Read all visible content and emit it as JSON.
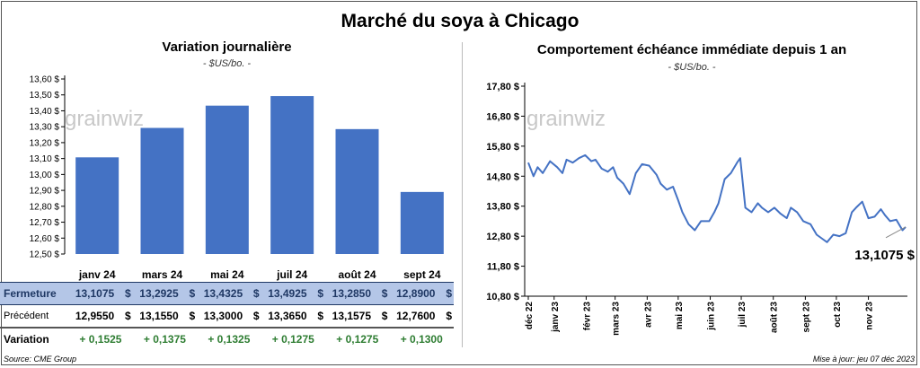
{
  "title": "Marché du soya à Chicago",
  "left_title": "Variation  journalière",
  "left_unit": "- $US/bo. -",
  "right_title": "Comportement  échéance  immédiate  depuis  1  an",
  "right_unit": "- $US/bo. -",
  "watermark": "grainwiz",
  "currency": "$",
  "table": {
    "rows": [
      {
        "label": "Fermeture",
        "values": [
          "13,1075",
          "13,2925",
          "13,4325",
          "13,4925",
          "13,2850",
          "12,8900"
        ]
      },
      {
        "label": "Précédent",
        "values": [
          "12,9550",
          "13,1550",
          "13,3000",
          "13,3650",
          "13,1575",
          "12,7600"
        ]
      }
    ],
    "variation_label": "Variation",
    "variations": [
      "+ 0,1525",
      "+ 0,1375",
      "+ 0,1325",
      "+ 0,1275",
      "+ 0,1275",
      "+ 0,1300"
    ]
  },
  "footer": {
    "source": "Source: CME Group",
    "update": "Mise à jour: jeu 07 déc 2023"
  },
  "chart_data": [
    {
      "type": "bar",
      "categories": [
        "janv 24",
        "mars 24",
        "mai 24",
        "juil 24",
        "août 24",
        "sept 24"
      ],
      "values": [
        13.1075,
        13.2925,
        13.4325,
        13.4925,
        13.285,
        12.89
      ],
      "ylim": [
        12.5,
        13.6
      ],
      "yticks": [
        "12,50 $",
        "12,60 $",
        "12,70 $",
        "12,80 $",
        "12,90 $",
        "13,00 $",
        "13,10 $",
        "13,20 $",
        "13,30 $",
        "13,40 $",
        "13,50 $",
        "13,60 $"
      ],
      "color": "#4472c4"
    },
    {
      "type": "line",
      "ylim": [
        10.8,
        17.8
      ],
      "yticks": [
        "10,80 $",
        "11,80 $",
        "12,80 $",
        "13,80 $",
        "14,80 $",
        "15,80 $",
        "16,80 $",
        "17,80 $"
      ],
      "xticks": [
        "déc 22",
        "janv 23",
        "févr 23",
        "mars 23",
        "avr 23",
        "mai 23",
        "juin 23",
        "juil 23",
        "août 23",
        "sept 23",
        "oct 23",
        "nov 23"
      ],
      "last_label": "13,1075 $",
      "color": "#4472c4",
      "x": [
        "2022-12-07",
        "2022-12-12",
        "2022-12-16",
        "2022-12-21",
        "2022-12-28",
        "2023-01-04",
        "2023-01-09",
        "2023-01-13",
        "2023-01-19",
        "2023-01-25",
        "2023-01-31",
        "2023-02-06",
        "2023-02-10",
        "2023-02-16",
        "2023-02-22",
        "2023-02-27",
        "2023-03-03",
        "2023-03-09",
        "2023-03-15",
        "2023-03-21",
        "2023-03-27",
        "2023-04-03",
        "2023-04-10",
        "2023-04-14",
        "2023-04-20",
        "2023-04-26",
        "2023-05-01",
        "2023-05-05",
        "2023-05-11",
        "2023-05-17",
        "2023-05-23",
        "2023-05-31",
        "2023-06-05",
        "2023-06-09",
        "2023-06-15",
        "2023-06-21",
        "2023-06-27",
        "2023-06-30",
        "2023-07-05",
        "2023-07-11",
        "2023-07-17",
        "2023-07-21",
        "2023-07-27",
        "2023-08-02",
        "2023-08-08",
        "2023-08-14",
        "2023-08-18",
        "2023-08-24",
        "2023-08-30",
        "2023-09-06",
        "2023-09-12",
        "2023-09-18",
        "2023-09-22",
        "2023-09-28",
        "2023-10-04",
        "2023-10-10",
        "2023-10-16",
        "2023-10-20",
        "2023-10-26",
        "2023-11-01",
        "2023-11-07",
        "2023-11-13",
        "2023-11-17",
        "2023-11-22",
        "2023-11-28",
        "2023-12-04",
        "2023-12-07"
      ],
      "y": [
        15.25,
        14.8,
        15.1,
        14.9,
        15.3,
        15.1,
        14.9,
        15.35,
        15.25,
        15.4,
        15.5,
        15.3,
        15.35,
        15.05,
        14.95,
        15.1,
        14.75,
        14.55,
        14.2,
        14.9,
        15.2,
        15.15,
        14.85,
        14.55,
        14.35,
        14.45,
        14.0,
        13.6,
        13.2,
        13.0,
        13.3,
        13.3,
        13.6,
        13.9,
        14.7,
        14.9,
        15.25,
        15.4,
        13.75,
        13.6,
        13.9,
        13.75,
        13.6,
        13.75,
        13.55,
        13.4,
        13.75,
        13.6,
        13.3,
        13.2,
        12.85,
        12.7,
        12.6,
        12.85,
        12.8,
        12.9,
        13.6,
        13.75,
        13.95,
        13.4,
        13.45,
        13.7,
        13.5,
        13.3,
        13.35,
        13.0,
        13.1075
      ]
    }
  ]
}
